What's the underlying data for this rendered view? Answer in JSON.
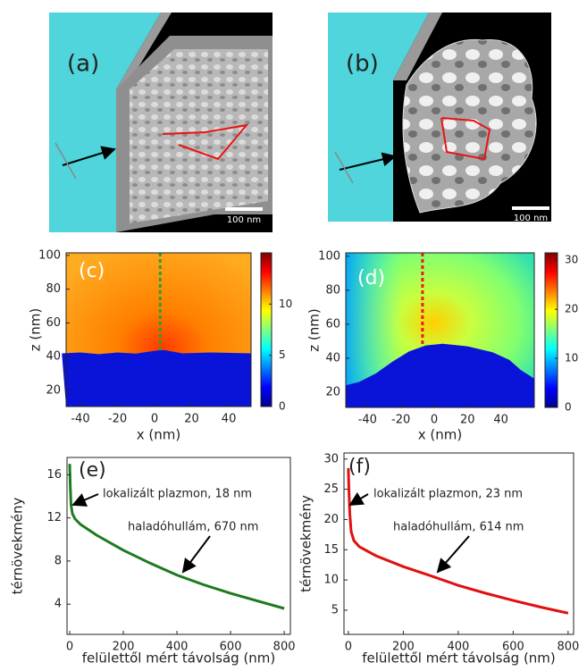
{
  "panels": {
    "a": {
      "label": "(a)",
      "scale_bar": "100 nm"
    },
    "b": {
      "label": "(b)",
      "scale_bar": "100 nm"
    }
  },
  "chart_data": [
    {
      "type": "heatmap",
      "label": "(c)",
      "xlabel": "x (nm)",
      "ylabel": "z (nm)",
      "xlim": [
        -47.7,
        52
      ],
      "ylim": [
        10.5,
        101.5
      ],
      "xticks": [
        -40,
        -20,
        0,
        20,
        40
      ],
      "yticks": [
        20,
        40,
        60,
        80,
        100
      ],
      "cbar_lim": [
        0,
        15
      ],
      "cbar_ticks": [
        0,
        5,
        10
      ],
      "probe_x": 3,
      "probe_color": "#2ca02c"
    },
    {
      "type": "heatmap",
      "label": "(d)",
      "xlabel": "x (nm)",
      "ylabel": "z (nm)",
      "xlim": [
        -53,
        60
      ],
      "ylim": [
        11,
        102
      ],
      "xticks": [
        -40,
        -20,
        0,
        20,
        40
      ],
      "yticks": [
        20,
        40,
        60,
        80,
        100
      ],
      "cbar_lim": [
        0,
        31.5
      ],
      "cbar_ticks": [
        0,
        10,
        20,
        30
      ],
      "probe_x": -7,
      "probe_color": "#e8201c"
    },
    {
      "type": "line",
      "label": "(e)",
      "xlabel": "felülettől mért távolság (nm)",
      "ylabel": "térnövekmény",
      "xlim": [
        -10,
        823
      ],
      "ylim": [
        1.2,
        17.6
      ],
      "xticks": [
        0,
        200,
        400,
        600,
        800
      ],
      "yticks": [
        4,
        8,
        12,
        16
      ],
      "annotations": [
        "lokalizált plazmon, 18 nm",
        "haladóhullám, 670 nm"
      ],
      "series": [
        {
          "color": "#1e7a1e",
          "x": [
            0,
            2,
            5,
            10,
            20,
            40,
            100,
            200,
            300,
            400,
            500,
            600,
            700,
            800
          ],
          "values": [
            17,
            15,
            13.2,
            12.4,
            11.9,
            11.4,
            10.4,
            9.0,
            7.8,
            6.7,
            5.8,
            5.0,
            4.3,
            3.6
          ]
        }
      ]
    },
    {
      "type": "line",
      "label": "(f)",
      "xlabel": "felülettől mért távolság (nm)",
      "ylabel": "térnövekmény",
      "xlim": [
        -16,
        820
      ],
      "ylim": [
        1,
        31
      ],
      "xticks": [
        0,
        200,
        400,
        600,
        800
      ],
      "yticks": [
        5,
        10,
        15,
        20,
        25,
        30
      ],
      "annotations": [
        "lokalizált plazmon, 23 nm",
        "haladóhullám, 614 nm"
      ],
      "series": [
        {
          "color": "#e01010",
          "x": [
            0,
            2,
            5,
            10,
            20,
            40,
            100,
            200,
            300,
            400,
            500,
            600,
            700,
            800
          ],
          "values": [
            28.5,
            25,
            21,
            18,
            16.5,
            15.5,
            14,
            12.2,
            10.7,
            9.1,
            7.8,
            6.6,
            5.5,
            4.5
          ]
        }
      ]
    }
  ]
}
